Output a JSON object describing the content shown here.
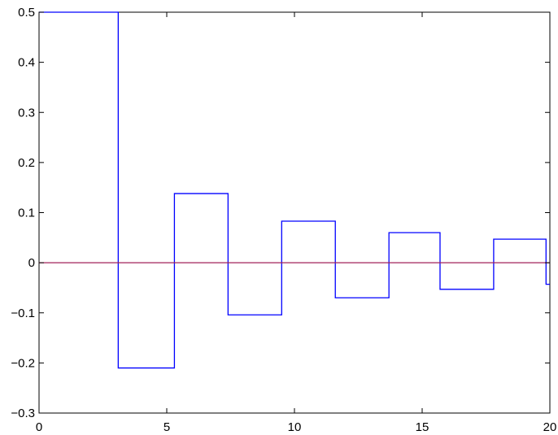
{
  "chart_data": {
    "type": "line",
    "xlim": [
      0,
      20
    ],
    "ylim": [
      -0.3,
      0.5
    ],
    "x_ticks": [
      0,
      5,
      10,
      15,
      20
    ],
    "y_ticks": [
      -0.3,
      -0.2,
      -0.1,
      0,
      0.1,
      0.2,
      0.3,
      0.4,
      0.5
    ],
    "x_tick_labels": [
      "0",
      "5",
      "10",
      "15",
      "20"
    ],
    "y_tick_labels": [
      "−0.3",
      "−0.2",
      "−0.1",
      "0",
      "0.1",
      "0.2",
      "0.3",
      "0.4",
      "0.5"
    ],
    "grid": false,
    "series": [
      {
        "style": "step",
        "color": "#0000ff",
        "x": [
          0,
          3.1,
          3.1,
          5.3,
          5.3,
          7.4,
          7.4,
          9.5,
          9.5,
          11.6,
          11.6,
          13.7,
          13.7,
          15.7,
          15.7,
          17.8,
          17.8,
          19.85,
          19.85,
          20
        ],
        "y": [
          0.5,
          0.5,
          -0.21,
          -0.21,
          0.138,
          0.138,
          -0.104,
          -0.104,
          0.083,
          0.083,
          -0.07,
          -0.07,
          0.06,
          0.06,
          -0.053,
          -0.053,
          0.047,
          0.047,
          -0.043,
          -0.043
        ]
      },
      {
        "style": "line",
        "color": "#a0205a",
        "x": [
          0,
          20
        ],
        "y": [
          0,
          0
        ]
      }
    ]
  }
}
